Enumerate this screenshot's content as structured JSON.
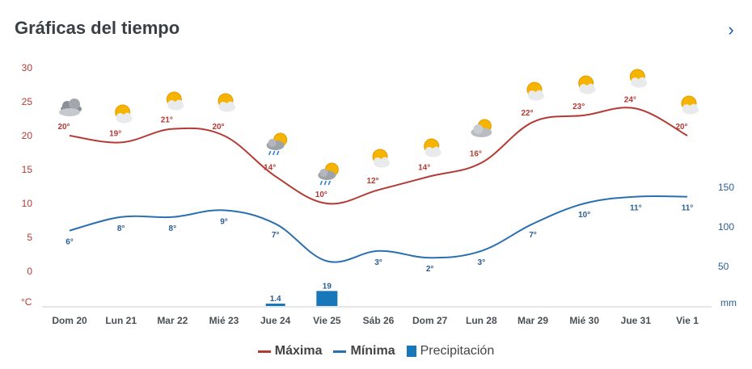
{
  "header": {
    "title": "Gráficas del tiempo",
    "next_icon": "chevron-right-icon"
  },
  "colors": {
    "max": "#b53a34",
    "min": "#2a6fb0",
    "precip": "#1877b8",
    "left_axis": "#b53a34",
    "right_axis": "#2a5d94"
  },
  "chart_data": {
    "type": "line",
    "categories": [
      "Dom 20",
      "Lun 21",
      "Mar 22",
      "Mié 23",
      "Jue 24",
      "Vie 25",
      "Sáb 26",
      "Dom 27",
      "Lun 28",
      "Mar 29",
      "Mié 30",
      "Jue 31",
      "Vie 1"
    ],
    "series": [
      {
        "name": "Máxima",
        "values": [
          20,
          19,
          21,
          20,
          14,
          10,
          12,
          14,
          16,
          22,
          23,
          24,
          20
        ],
        "labels": [
          "20°",
          "19°",
          "21°",
          "20°",
          "14°",
          "10°",
          "12°",
          "14°",
          "16°",
          "22°",
          "23°",
          "24°",
          "20°"
        ],
        "axis": "left"
      },
      {
        "name": "Mínima",
        "values": [
          6,
          8,
          8,
          9,
          7,
          1.5,
          3,
          2,
          3,
          7,
          10,
          11,
          11
        ],
        "labels": [
          "6°",
          "8°",
          "8°",
          "9°",
          "7°",
          "",
          "3°",
          "2°",
          "3°",
          "7°",
          "10°",
          "11°",
          "11°"
        ],
        "axis": "left"
      },
      {
        "name": "Precipitación",
        "type": "bar",
        "values": [
          0,
          0,
          0,
          0,
          1.4,
          19,
          0,
          0,
          0,
          0,
          0,
          0,
          0
        ],
        "labels": [
          "",
          "",
          "",
          "",
          "1.4",
          "19",
          "",
          "",
          "",
          "",
          "",
          "",
          ""
        ],
        "axis": "right"
      }
    ],
    "left_axis": {
      "unit": "°C",
      "ticks": [
        "30",
        "25",
        "20",
        "15",
        "10",
        "5",
        "0"
      ],
      "range": [
        -5,
        30
      ]
    },
    "right_axis": {
      "unit": "mm",
      "ticks": [
        "150",
        "100",
        "50"
      ],
      "range": [
        0,
        150
      ]
    },
    "icons": [
      "cloudy-icon",
      "sun-cloud-icon",
      "sun-cloud-icon",
      "sun-cloud-icon",
      "rain-sun-icon",
      "rain-sun-icon",
      "sun-cloud-icon",
      "sun-cloud-icon",
      "cloudy-sun-icon",
      "sun-cloud-icon",
      "sun-cloud-icon",
      "sun-cloud-icon",
      "sun-cloud-icon"
    ],
    "legend_placement": "bottom-center"
  }
}
